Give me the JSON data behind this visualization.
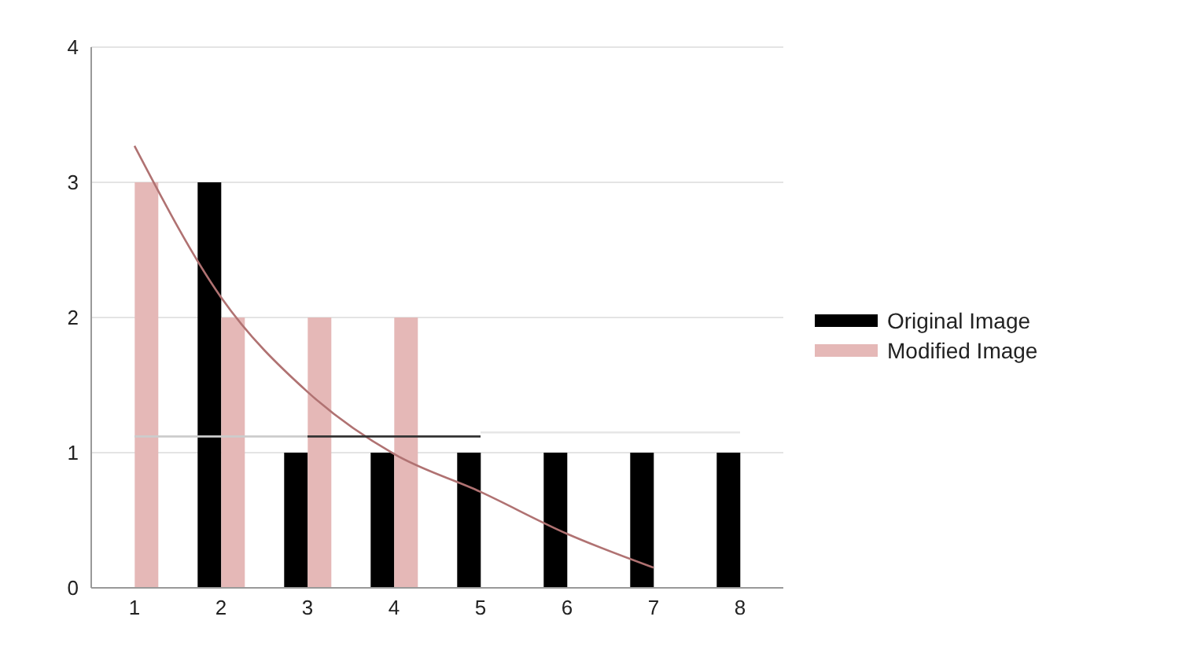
{
  "chart_data": {
    "type": "bar",
    "categories": [
      "1",
      "2",
      "3",
      "4",
      "5",
      "6",
      "7",
      "8"
    ],
    "series": [
      {
        "name": "Original Image",
        "color": "#000000",
        "values": [
          0,
          3,
          1,
          1,
          1,
          1,
          1,
          1
        ]
      },
      {
        "name": "Modified Image",
        "color": "#e5b8b7",
        "values": [
          3,
          2,
          2,
          2,
          0,
          0,
          0,
          0
        ]
      },
      {
        "type": "line",
        "color": "#b07272",
        "values": [
          3.27,
          2.15,
          1.45,
          0.99,
          0.71,
          0.4,
          0.15,
          null
        ]
      },
      {
        "type": "line",
        "color": "#cccccc",
        "values": [
          1.12,
          1.12,
          1.12,
          null,
          null,
          null,
          null,
          null
        ]
      },
      {
        "type": "line",
        "color": "#333333",
        "values": [
          null,
          null,
          1.12,
          1.12,
          1.12,
          null,
          null,
          null
        ]
      },
      {
        "type": "line",
        "color": "#e6e6e6",
        "values": [
          null,
          null,
          null,
          null,
          1.15,
          1.15,
          1.15,
          1.15
        ]
      }
    ],
    "ylim": [
      0,
      4
    ],
    "yticks": [
      0,
      1,
      2,
      3,
      4
    ],
    "grid": "y",
    "legend": "right"
  }
}
